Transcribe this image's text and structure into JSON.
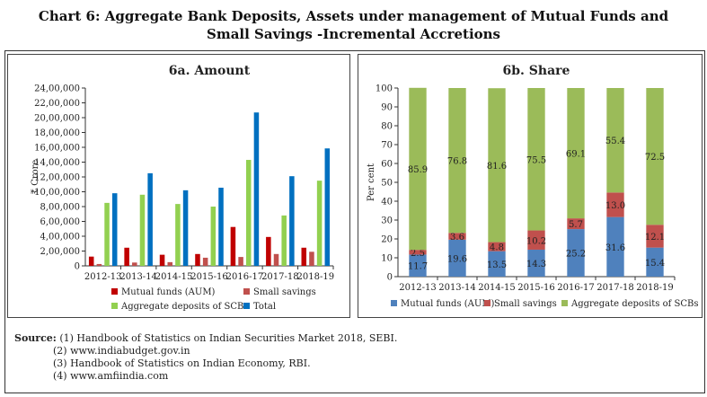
{
  "title_line1": "Chart 6: Aggregate Bank Deposits, Assets under management of Mutual Funds and",
  "title_line2": "Small Savings -Incremental Accretions",
  "source": {
    "label": "Source:",
    "items": [
      "(1)  Handbook of Statistics on Indian Securities Market 2018, SEBI.",
      "(2)  www.indiabudget.gov.in",
      "(3)  Handbook of Statistics on Indian Economy, RBI.",
      "(4)  www.amfiindia.com"
    ]
  },
  "chart_data": [
    {
      "type": "bar",
      "title": "6a. Amount",
      "ylabel": "₹ Crore",
      "xlabel": "",
      "ylim": [
        0,
        2400000
      ],
      "yticks": [
        0,
        200000,
        400000,
        600000,
        800000,
        1000000,
        1200000,
        1400000,
        1600000,
        1800000,
        2000000,
        2200000,
        2400000
      ],
      "ytick_labels": [
        "0",
        "2,00,000",
        "4,00,000",
        "6,00,000",
        "8,00,000",
        "10,00,000",
        "12,00,000",
        "14,00,000",
        "16,00,000",
        "18,00,000",
        "20,00,000",
        "22,00,000",
        "24,00,000"
      ],
      "categories": [
        "2012-13",
        "2013-14",
        "2014-15",
        "2015-16",
        "2016-17",
        "2017-18",
        "2018-19"
      ],
      "legend_position": "bottom",
      "grid": false,
      "series": [
        {
          "name": "Mutual funds (AUM)",
          "color": "#c00000",
          "values": [
            125000,
            245000,
            150000,
            160000,
            525000,
            390000,
            245000
          ]
        },
        {
          "name": "Small savings",
          "color": "#c0504d",
          "values": [
            25000,
            45000,
            50000,
            110000,
            120000,
            160000,
            190000
          ]
        },
        {
          "name": "Aggregate  deposits  of SCBs",
          "color": "#92d050",
          "values": [
            850000,
            960000,
            835000,
            800000,
            1430000,
            680000,
            1150000
          ]
        },
        {
          "name": "Total",
          "color": "#0070c0",
          "values": [
            980000,
            1250000,
            1020000,
            1055000,
            2070000,
            1210000,
            1585000
          ]
        }
      ]
    },
    {
      "type": "bar",
      "stacked": true,
      "title": "6b. Share",
      "ylabel": "Per cent",
      "xlabel": "",
      "ylim": [
        0,
        100
      ],
      "yticks": [
        0,
        10,
        20,
        30,
        40,
        50,
        60,
        70,
        80,
        90,
        100
      ],
      "categories": [
        "2012-13",
        "2013-14",
        "2014-15",
        "2015-16",
        "2016-17",
        "2017-18",
        "2018-19"
      ],
      "legend_position": "bottom",
      "grid": false,
      "series": [
        {
          "name": "Mutual funds (AUM)",
          "color": "#4f81bd",
          "values": [
            11.7,
            19.6,
            13.5,
            14.3,
            25.2,
            31.6,
            15.4
          ]
        },
        {
          "name": "Small savings",
          "color": "#c0504d",
          "values": [
            2.5,
            3.6,
            4.8,
            10.2,
            5.7,
            13.0,
            12.1
          ]
        },
        {
          "name": "Aggregate  deposits  of SCBs",
          "color": "#9bbb59",
          "values": [
            85.9,
            76.8,
            81.6,
            75.5,
            69.1,
            55.4,
            72.5
          ]
        }
      ]
    }
  ]
}
